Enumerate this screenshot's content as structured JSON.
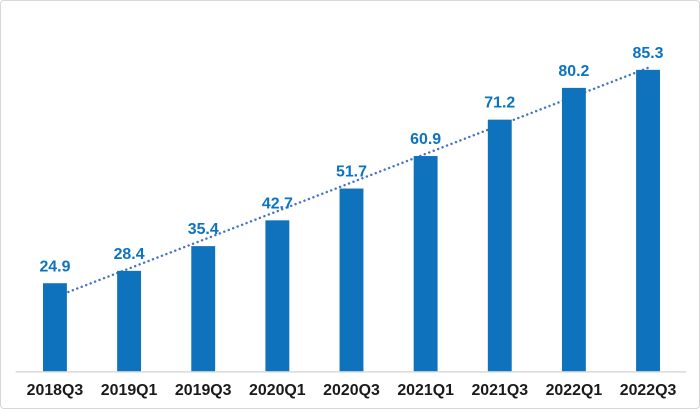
{
  "chart_data": {
    "type": "bar",
    "title": "",
    "xlabel": "",
    "ylabel": "",
    "categories": [
      "2018Q3",
      "2019Q1",
      "2019Q3",
      "2020Q1",
      "2020Q3",
      "2021Q1",
      "2021Q3",
      "2022Q1",
      "2022Q3"
    ],
    "values": [
      24.9,
      28.4,
      35.4,
      42.7,
      51.7,
      60.9,
      71.2,
      80.2,
      85.3
    ],
    "data_labels": [
      "24.9",
      "28.4",
      "35.4",
      "42.7",
      "51.7",
      "60.9",
      "71.2",
      "80.2",
      "85.3"
    ],
    "ylim": [
      0,
      100
    ],
    "grid": false,
    "legend": null,
    "trendline": {
      "type": "linear",
      "style": "dotted",
      "color": "#4472c4"
    },
    "colors": {
      "bar": "#0e72bc",
      "value_label": "#0c72c2",
      "category_label": "#1a1a1a",
      "axis_line": "#d9d9d9",
      "background": "#ffffff",
      "frame_border": "#d7d7d7"
    }
  }
}
